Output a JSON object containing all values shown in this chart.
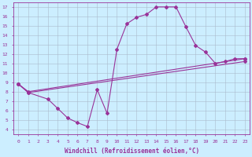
{
  "background_color": "#cceeff",
  "line_color": "#993399",
  "grid_color": "#aabbcc",
  "xlabel": "Windchill (Refroidissement éolien,°C)",
  "ylim": [
    3.5,
    17.5
  ],
  "xlim": [
    -0.5,
    23.5
  ],
  "curve1_x": [
    0,
    1,
    3,
    4,
    5,
    6,
    7,
    8,
    9,
    10,
    11,
    12,
    13,
    14,
    15,
    16,
    17,
    18,
    19,
    20,
    21,
    22,
    23
  ],
  "curve1_y": [
    8.8,
    7.9,
    7.2,
    6.2,
    5.2,
    4.7,
    4.3,
    8.2,
    5.7,
    12.5,
    15.2,
    15.9,
    16.2,
    17.0,
    17.0,
    17.0,
    14.9,
    12.9,
    12.2,
    11.0,
    11.2,
    11.5,
    11.5
  ],
  "curve2_x": [
    0,
    1,
    23
  ],
  "curve2_y": [
    8.8,
    8.0,
    11.5
  ],
  "curve3_x": [
    0,
    1,
    23
  ],
  "curve3_y": [
    8.8,
    7.9,
    11.2
  ],
  "marker": "D",
  "marker_size": 2,
  "line_width": 0.8,
  "tick_fontsize": 4.5,
  "xlabel_fontsize": 5.5
}
